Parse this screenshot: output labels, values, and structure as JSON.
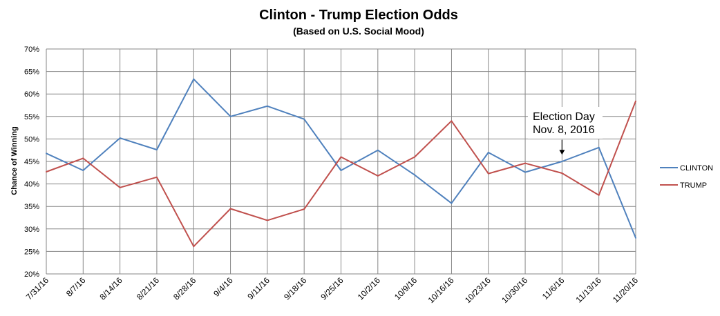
{
  "chart_data": {
    "type": "line",
    "title": "Clinton - Trump Election Odds",
    "subtitle": "(Based on  U.S. Social Mood)",
    "ylabel": "Chance of Winning",
    "xlabel": "",
    "ylim": [
      20,
      70
    ],
    "ytick_step": 5,
    "ytick_suffix": "%",
    "grid": true,
    "legend_position": "right",
    "categories": [
      "7/31/16",
      "8/7/16",
      "8/14/16",
      "8/21/16",
      "8/28/16",
      "9/4/16",
      "9/11/16",
      "9/18/16",
      "9/25/16",
      "10/2/16",
      "10/9/16",
      "10/16/16",
      "10/23/16",
      "10/30/16",
      "11/6/16",
      "11/13/16",
      "11/20/16"
    ],
    "series": [
      {
        "name": "CLINTON",
        "color": "#4F81BD",
        "values": [
          46.8,
          43.0,
          50.2,
          47.6,
          63.3,
          55.0,
          57.3,
          54.4,
          43.0,
          47.5,
          42.0,
          35.7,
          47.0,
          42.6,
          45.0,
          48.1,
          28.0
        ]
      },
      {
        "name": "TRUMP",
        "color": "#C0504D",
        "values": [
          42.7,
          45.7,
          39.2,
          41.5,
          26.1,
          34.5,
          31.9,
          34.4,
          46.0,
          41.8,
          46.0,
          54.0,
          42.3,
          44.6,
          42.4,
          37.5,
          58.4
        ]
      }
    ],
    "annotation": {
      "lines": [
        "Election Day",
        "Nov. 8, 2016"
      ],
      "category": "11/6/16",
      "arrow_value": 46.5
    }
  }
}
